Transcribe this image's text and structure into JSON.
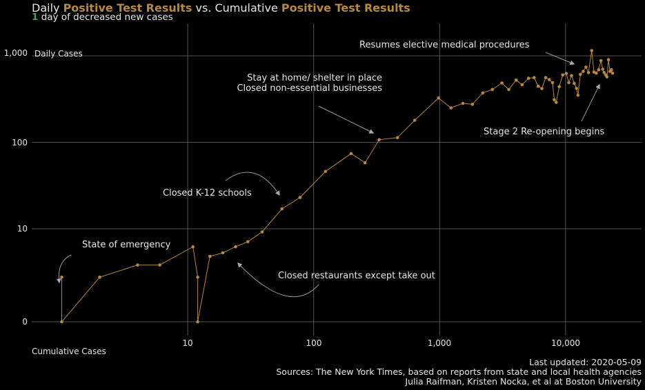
{
  "header": {
    "title_prefix": "Daily ",
    "title_hl1": "Positive Test Results",
    "title_mid": " vs. Cumulative ",
    "title_hl2": "Positive Test Results",
    "subtitle_count": "1",
    "subtitle_text": " day of decreased new cases"
  },
  "colors": {
    "accent": "#b8893a",
    "highlight_green": "#3fa55a",
    "background": "#000000",
    "grid": "#555555",
    "text": "#e6e6e6"
  },
  "footer": {
    "updated": "Last updated: 2020-05-09",
    "sources": "Sources: The New York Times, based on reports from state and local health agencies",
    "authors": "Julia Raifman,  Kristen Nocka, et al at Boston University"
  },
  "chart_data": {
    "type": "line",
    "xscale": "log",
    "yscale": "log",
    "xlabel": "Cumulative Cases",
    "ylabel": "Daily Cases",
    "x_ticks": [
      10,
      100,
      1000,
      10000
    ],
    "x_tick_labels": [
      "10",
      "100",
      "1,000",
      "10,000"
    ],
    "y_ticks": [
      0,
      10,
      100,
      1000
    ],
    "y_tick_labels": [
      "0",
      "10",
      "100",
      "1,000"
    ],
    "grid": true,
    "series": [
      {
        "color": "#b8893a",
        "points": [
          [
            1,
            2
          ],
          [
            1,
            0
          ],
          [
            2,
            2
          ],
          [
            4,
            3
          ],
          [
            6,
            3
          ],
          [
            11,
            5.5
          ],
          [
            12,
            2
          ],
          [
            12,
            0
          ],
          [
            15,
            4
          ],
          [
            19,
            4.5
          ],
          [
            24,
            5.5
          ],
          [
            30,
            6.5
          ],
          [
            39,
            9
          ],
          [
            56,
            17
          ],
          [
            78,
            23
          ],
          [
            124,
            46
          ],
          [
            198,
            74
          ],
          [
            256,
            58
          ],
          [
            331,
            107
          ],
          [
            462,
            113
          ],
          [
            634,
            180
          ],
          [
            980,
            325
          ],
          [
            1230,
            250
          ],
          [
            1530,
            282
          ],
          [
            1820,
            275
          ],
          [
            2200,
            372
          ],
          [
            2620,
            408
          ],
          [
            3120,
            485
          ],
          [
            3540,
            408
          ],
          [
            4050,
            523
          ],
          [
            4520,
            463
          ],
          [
            5080,
            550
          ],
          [
            5630,
            560
          ],
          [
            6060,
            445
          ],
          [
            6480,
            418
          ],
          [
            6950,
            560
          ],
          [
            7430,
            530
          ],
          [
            7880,
            490
          ],
          [
            8120,
            310
          ],
          [
            8420,
            290
          ],
          [
            8900,
            440
          ],
          [
            9490,
            600
          ],
          [
            10130,
            625
          ],
          [
            10600,
            490
          ],
          [
            11150,
            590
          ],
          [
            11700,
            480
          ],
          [
            12200,
            420
          ],
          [
            12550,
            350
          ],
          [
            13100,
            610
          ],
          [
            13800,
            660
          ],
          [
            14500,
            740
          ],
          [
            15200,
            640
          ],
          [
            16100,
            1150
          ],
          [
            16800,
            650
          ],
          [
            17500,
            630
          ],
          [
            18300,
            690
          ],
          [
            19100,
            880
          ],
          [
            19700,
            700
          ],
          [
            20200,
            640
          ],
          [
            20800,
            600
          ],
          [
            21300,
            570
          ],
          [
            21900,
            900
          ],
          [
            22500,
            660
          ],
          [
            23100,
            690
          ],
          [
            23600,
            630
          ]
        ]
      }
    ],
    "annotations": [
      {
        "text": "State of emergency"
      },
      {
        "text": "Closed K-12 schools"
      },
      {
        "text": "Closed restaurants except take out"
      },
      {
        "text": "Stay at home/ shelter in place"
      },
      {
        "text": "Closed non-essential businesses"
      },
      {
        "text": "Resumes elective medical procedures"
      },
      {
        "text": "Stage 2 Re-opening begins"
      }
    ]
  }
}
